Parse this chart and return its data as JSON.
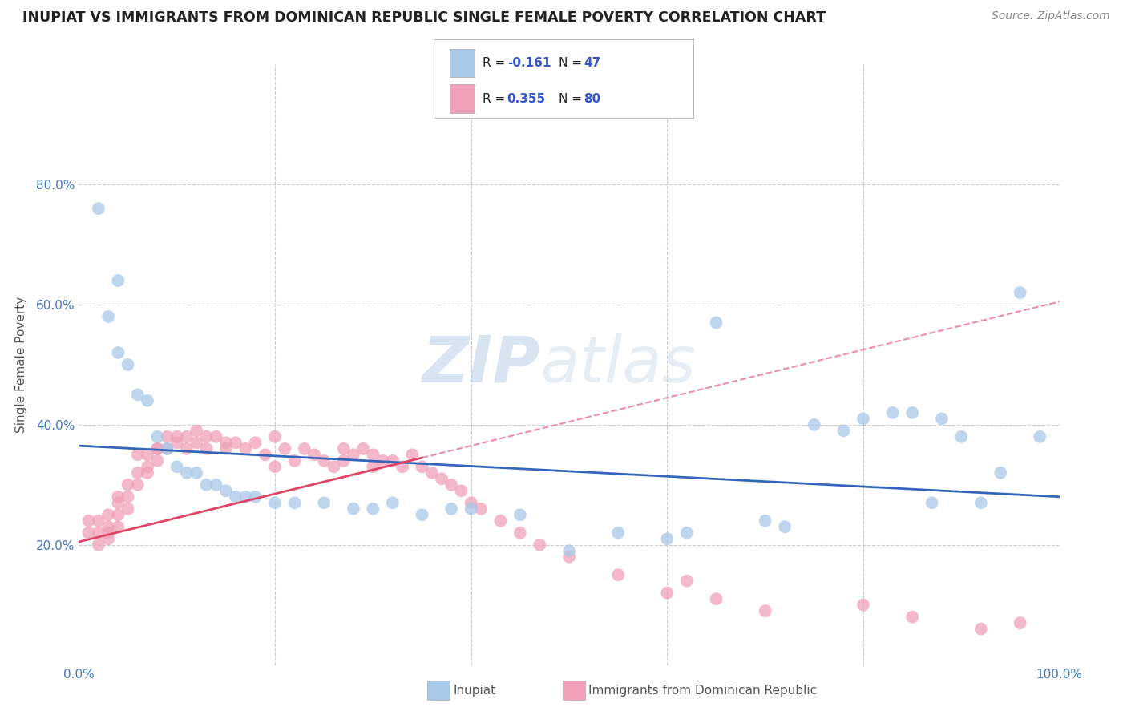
{
  "title": "INUPIAT VS IMMIGRANTS FROM DOMINICAN REPUBLIC SINGLE FEMALE POVERTY CORRELATION CHART",
  "source": "Source: ZipAtlas.com",
  "ylabel": "Single Female Poverty",
  "xlim": [
    0,
    1
  ],
  "ylim": [
    0,
    1
  ],
  "watermark": "ZIPatlas",
  "r1": "-0.161",
  "n1": "47",
  "r2": "0.355",
  "n2": "80",
  "color_inupiat": "#a8c8e8",
  "color_dr": "#f0a0b8",
  "color_line_inupiat": "#3366bb",
  "color_line_dr": "#dd4466",
  "background": "#ffffff",
  "grid_color": "#cccccc",
  "inupiat_x": [
    0.02,
    0.03,
    0.04,
    0.04,
    0.05,
    0.06,
    0.07,
    0.08,
    0.09,
    0.1,
    0.11,
    0.12,
    0.13,
    0.14,
    0.15,
    0.16,
    0.17,
    0.18,
    0.2,
    0.22,
    0.25,
    0.28,
    0.3,
    0.32,
    0.35,
    0.38,
    0.4,
    0.45,
    0.5,
    0.55,
    0.6,
    0.62,
    0.65,
    0.7,
    0.72,
    0.75,
    0.78,
    0.8,
    0.83,
    0.85,
    0.87,
    0.88,
    0.9,
    0.92,
    0.94,
    0.96,
    0.98
  ],
  "inupiat_y": [
    0.76,
    0.58,
    0.64,
    0.52,
    0.5,
    0.45,
    0.44,
    0.38,
    0.36,
    0.33,
    0.32,
    0.32,
    0.3,
    0.3,
    0.29,
    0.28,
    0.28,
    0.28,
    0.27,
    0.27,
    0.27,
    0.26,
    0.26,
    0.27,
    0.25,
    0.26,
    0.26,
    0.25,
    0.19,
    0.22,
    0.21,
    0.22,
    0.57,
    0.24,
    0.23,
    0.4,
    0.39,
    0.41,
    0.42,
    0.42,
    0.27,
    0.41,
    0.38,
    0.27,
    0.32,
    0.62,
    0.38
  ],
  "dr_x": [
    0.01,
    0.01,
    0.02,
    0.02,
    0.02,
    0.03,
    0.03,
    0.03,
    0.03,
    0.04,
    0.04,
    0.04,
    0.04,
    0.05,
    0.05,
    0.05,
    0.06,
    0.06,
    0.06,
    0.07,
    0.07,
    0.07,
    0.08,
    0.08,
    0.08,
    0.09,
    0.09,
    0.1,
    0.1,
    0.11,
    0.11,
    0.12,
    0.12,
    0.13,
    0.13,
    0.14,
    0.15,
    0.15,
    0.16,
    0.17,
    0.18,
    0.19,
    0.2,
    0.2,
    0.21,
    0.22,
    0.23,
    0.24,
    0.25,
    0.26,
    0.27,
    0.27,
    0.28,
    0.29,
    0.3,
    0.3,
    0.31,
    0.32,
    0.33,
    0.34,
    0.35,
    0.36,
    0.37,
    0.38,
    0.39,
    0.4,
    0.41,
    0.43,
    0.45,
    0.47,
    0.5,
    0.55,
    0.6,
    0.62,
    0.65,
    0.7,
    0.8,
    0.85,
    0.92,
    0.96
  ],
  "dr_y": [
    0.24,
    0.22,
    0.24,
    0.22,
    0.2,
    0.23,
    0.25,
    0.22,
    0.21,
    0.25,
    0.28,
    0.27,
    0.23,
    0.3,
    0.28,
    0.26,
    0.3,
    0.32,
    0.35,
    0.33,
    0.35,
    0.32,
    0.36,
    0.34,
    0.36,
    0.36,
    0.38,
    0.37,
    0.38,
    0.38,
    0.36,
    0.39,
    0.37,
    0.38,
    0.36,
    0.38,
    0.36,
    0.37,
    0.37,
    0.36,
    0.37,
    0.35,
    0.38,
    0.33,
    0.36,
    0.34,
    0.36,
    0.35,
    0.34,
    0.33,
    0.36,
    0.34,
    0.35,
    0.36,
    0.33,
    0.35,
    0.34,
    0.34,
    0.33,
    0.35,
    0.33,
    0.32,
    0.31,
    0.3,
    0.29,
    0.27,
    0.26,
    0.24,
    0.22,
    0.2,
    0.18,
    0.15,
    0.12,
    0.14,
    0.11,
    0.09,
    0.1,
    0.08,
    0.06,
    0.07
  ]
}
